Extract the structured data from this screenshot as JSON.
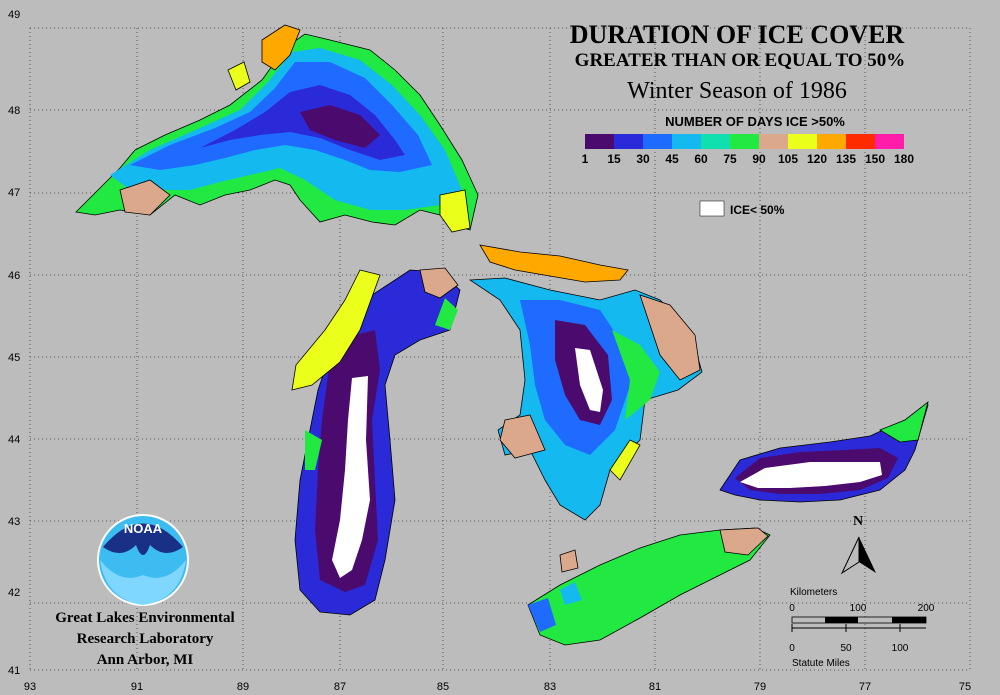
{
  "title": {
    "main": "DURATION OF ICE COVER",
    "sub": "GREATER THAN OR EQUAL TO 50%",
    "season": "Winter Season of 1986"
  },
  "legend": {
    "title": "NUMBER OF DAYS ICE >50%",
    "ticks": [
      "1",
      "15",
      "30",
      "45",
      "60",
      "75",
      "90",
      "105",
      "120",
      "135",
      "150",
      "180"
    ],
    "colors": [
      "#4b0a6e",
      "#2a2ad8",
      "#1f6bff",
      "#14b9f0",
      "#10e0b0",
      "#22e842",
      "#dca88c",
      "#eaff1a",
      "#ffa800",
      "#ff2a00",
      "#ff1ca8"
    ],
    "ice_label": "ICE< 50%",
    "ice_color": "#ffffff"
  },
  "axes": {
    "lat_labels": [
      "49",
      "48",
      "47",
      "46",
      "45",
      "44",
      "43",
      "42",
      "41"
    ],
    "lon_labels": [
      "93",
      "91",
      "89",
      "87",
      "85",
      "83",
      "81",
      "79",
      "77",
      "75"
    ]
  },
  "credit": {
    "org": "NOAA",
    "line1": "Great Lakes Environmental",
    "line2": "Research Laboratory",
    "line3": "Ann Arbor, MI"
  },
  "north_arrow": {
    "label": "N"
  },
  "scale_bar": {
    "km_title": "Kilometers",
    "km_ticks": [
      "0",
      "100",
      "200"
    ],
    "mi_ticks": [
      "0",
      "50",
      "100"
    ],
    "mi_title": "Statute Miles"
  }
}
